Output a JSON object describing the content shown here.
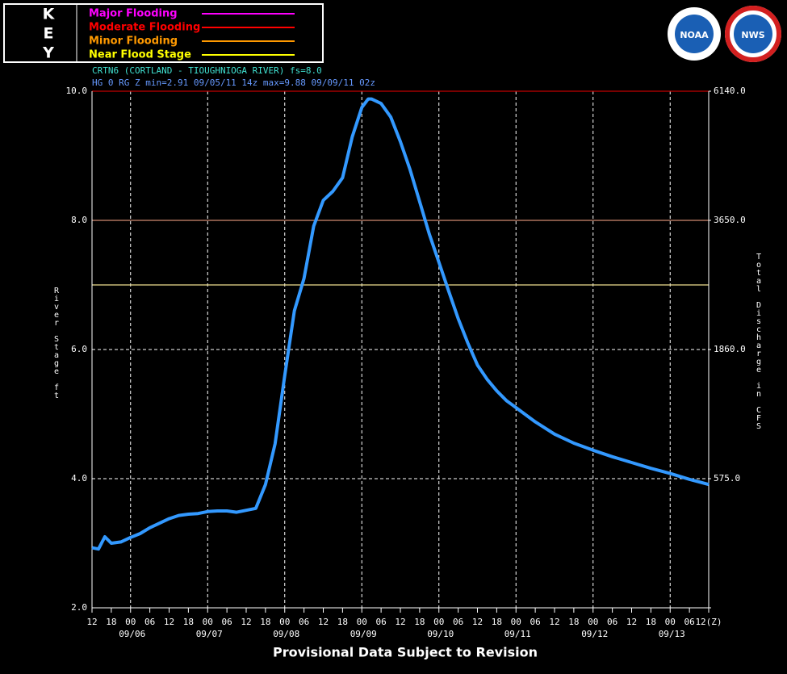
{
  "chart_data": {
    "type": "line",
    "key_title": [
      "K",
      "E",
      "Y"
    ],
    "key": [
      {
        "name": "Major Flooding",
        "color": "#ff00ff"
      },
      {
        "name": "Moderate Flooding",
        "color": "#ff0000"
      },
      {
        "name": "Minor Flooding",
        "color": "#ff9900"
      },
      {
        "name": "Near Flood Stage",
        "color": "#ffff00"
      }
    ],
    "logos": [
      "NOAA",
      "NWS"
    ],
    "title": "CRTN6 (CORTLAND - TIOUGHNIOGA RIVER) fs=8.0",
    "subtitle": "HG 0 RG Z min=2.91 09/05/11 14z max=9.88 09/09/11 02z",
    "footer": "Provisional Data Subject to Revision",
    "y_label": "River Stage ft",
    "y2_label": "Total Discharge in CFS",
    "flood_levels": [
      {
        "value": 10,
        "color": "#c00000"
      },
      {
        "value": 8,
        "color": "#d08a70"
      },
      {
        "value": 7,
        "color": "#f0e090"
      }
    ],
    "ylim": [
      2,
      10
    ],
    "yticks": [
      {
        "value": 2,
        "label": "2.0"
      },
      {
        "value": 4,
        "label": "4.0"
      },
      {
        "value": 6,
        "label": "6.0"
      },
      {
        "value": 8,
        "label": "8.0"
      },
      {
        "value": 10,
        "label": "10.0"
      }
    ],
    "y2ticks": [
      {
        "value": 575,
        "label": "575.0",
        "stage": 4
      },
      {
        "value": 1860,
        "label": "1860.0",
        "stage": 6
      },
      {
        "value": 3650,
        "label": "3650.0",
        "stage": 8
      },
      {
        "value": 6140,
        "label": "6140.0",
        "stage": 10
      }
    ],
    "xlim": [
      "09/05/11 12z",
      "09/13/11 12z"
    ],
    "xticks": [
      {
        "value": "09/05/11 12z",
        "label": "12"
      },
      {
        "value": "09/05/11 18z",
        "label": "18"
      },
      {
        "value": "09/06/11 00z",
        "label": "00"
      },
      {
        "value": "09/06/11 06z",
        "label": "06"
      },
      {
        "value": "09/06/11 12z",
        "label": "12"
      },
      {
        "value": "09/06/11 18z",
        "label": "18"
      },
      {
        "value": "09/07/11 00z",
        "label": "00"
      },
      {
        "value": "09/07/11 06z",
        "label": "06"
      },
      {
        "value": "09/07/11 12z",
        "label": "12"
      },
      {
        "value": "09/07/11 18z",
        "label": "18"
      },
      {
        "value": "09/08/11 00z",
        "label": "00"
      },
      {
        "value": "09/08/11 06z",
        "label": "06"
      },
      {
        "value": "09/08/11 12z",
        "label": "12"
      },
      {
        "value": "09/08/11 18z",
        "label": "18"
      },
      {
        "value": "09/09/11 00z",
        "label": "00"
      },
      {
        "value": "09/09/11 06z",
        "label": "06"
      },
      {
        "value": "09/09/11 12z",
        "label": "12"
      },
      {
        "value": "09/09/11 18z",
        "label": "18"
      },
      {
        "value": "09/10/11 00z",
        "label": "00"
      },
      {
        "value": "09/10/11 06z",
        "label": "06"
      },
      {
        "value": "09/10/11 12z",
        "label": "12"
      },
      {
        "value": "09/10/11 18z",
        "label": "18"
      },
      {
        "value": "09/11/11 00z",
        "label": "00"
      },
      {
        "value": "09/11/11 06z",
        "label": "06"
      },
      {
        "value": "09/11/11 12z",
        "label": "12"
      },
      {
        "value": "09/11/11 18z",
        "label": "18"
      },
      {
        "value": "09/12/11 00z",
        "label": "00"
      },
      {
        "value": "09/12/11 06z",
        "label": "06"
      },
      {
        "value": "09/12/11 12z",
        "label": "12"
      },
      {
        "value": "09/12/11 18z",
        "label": "18"
      },
      {
        "value": "09/13/11 00z",
        "label": "00"
      },
      {
        "value": "09/13/11 06z",
        "label": "06"
      },
      {
        "value": "09/13/11 12z",
        "label": "12(Z)"
      }
    ],
    "date_labels": [
      {
        "value": "09/06/11 00z",
        "label": "09/06"
      },
      {
        "value": "09/07/11 00z",
        "label": "09/07"
      },
      {
        "value": "09/08/11 00z",
        "label": "09/08"
      },
      {
        "value": "09/09/11 00z",
        "label": "09/09"
      },
      {
        "value": "09/10/11 00z",
        "label": "09/10"
      },
      {
        "value": "09/11/11 00z",
        "label": "09/11"
      },
      {
        "value": "09/12/11 00z",
        "label": "09/12"
      },
      {
        "value": "09/13/11 00z",
        "label": "09/13"
      }
    ],
    "series": [
      {
        "name": "Stage",
        "color": "#3399ff",
        "x": [
          "09/05/11 12z",
          "09/05/11 14z",
          "09/05/11 16z",
          "09/05/11 18z",
          "09/05/11 21z",
          "09/06/11 00z",
          "09/06/11 03z",
          "09/06/11 06z",
          "09/06/11 09z",
          "09/06/11 12z",
          "09/06/11 15z",
          "09/06/11 18z",
          "09/06/11 21z",
          "09/07/11 00z",
          "09/07/11 03z",
          "09/07/11 06z",
          "09/07/11 09z",
          "09/07/11 12z",
          "09/07/11 15z",
          "09/07/11 18z",
          "09/07/11 21z",
          "09/08/11 00z",
          "09/08/11 03z",
          "09/08/11 06z",
          "09/08/11 09z",
          "09/08/11 12z",
          "09/08/11 15z",
          "09/08/11 18z",
          "09/08/11 21z",
          "09/09/11 00z",
          "09/09/11 02z",
          "09/09/11 03z",
          "09/09/11 06z",
          "09/09/11 09z",
          "09/09/11 12z",
          "09/09/11 15z",
          "09/09/11 18z",
          "09/09/11 21z",
          "09/10/11 00z",
          "09/10/11 03z",
          "09/10/11 06z",
          "09/10/11 09z",
          "09/10/11 12z",
          "09/10/11 15z",
          "09/10/11 18z",
          "09/10/11 21z",
          "09/11/11 00z",
          "09/11/11 06z",
          "09/11/11 12z",
          "09/11/11 18z",
          "09/12/11 00z",
          "09/12/11 06z",
          "09/12/11 12z",
          "09/12/11 18z",
          "09/13/11 00z",
          "09/13/11 06z",
          "09/13/11 12z"
        ],
        "values": [
          2.93,
          2.91,
          3.1,
          3.0,
          3.02,
          3.09,
          3.15,
          3.24,
          3.31,
          3.38,
          3.43,
          3.45,
          3.46,
          3.49,
          3.5,
          3.5,
          3.48,
          3.51,
          3.54,
          3.91,
          4.54,
          5.6,
          6.6,
          7.1,
          7.91,
          8.31,
          8.45,
          8.66,
          9.29,
          9.75,
          9.88,
          9.88,
          9.81,
          9.6,
          9.22,
          8.79,
          8.29,
          7.79,
          7.35,
          6.91,
          6.48,
          6.1,
          5.76,
          5.54,
          5.36,
          5.21,
          5.1,
          4.88,
          4.69,
          4.55,
          4.44,
          4.34,
          4.25,
          4.16,
          4.08,
          3.99,
          3.91
        ]
      }
    ]
  }
}
